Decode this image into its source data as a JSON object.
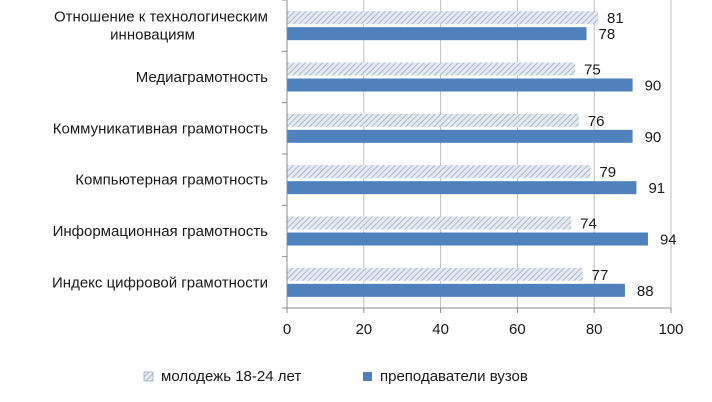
{
  "chart_data": {
    "type": "bar",
    "orientation": "horizontal",
    "categories": [
      [
        "Отношение к технологическим",
        "инновациям"
      ],
      [
        "Медиаграмотность"
      ],
      [
        "Коммуникативная грамотность"
      ],
      [
        "Компьютерная грамотность"
      ],
      [
        "Информационная грамотность"
      ],
      [
        "Индекс цифровой грамотности"
      ]
    ],
    "series": [
      {
        "name": "молодежь 18-24 лет",
        "values": [
          81,
          75,
          76,
          79,
          74,
          77
        ],
        "color": "#c9d3e0",
        "pattern": "hatch"
      },
      {
        "name": "преподаватели вузов",
        "values": [
          78,
          90,
          90,
          91,
          94,
          88
        ],
        "color": "#4f81bd",
        "pattern": "solid"
      }
    ],
    "xlim": [
      0,
      100
    ],
    "xticks": [
      "0",
      "20",
      "40",
      "60",
      "80",
      "100"
    ],
    "grid": true,
    "legend_position": "bottom",
    "title": "",
    "xlabel": "",
    "ylabel": ""
  }
}
